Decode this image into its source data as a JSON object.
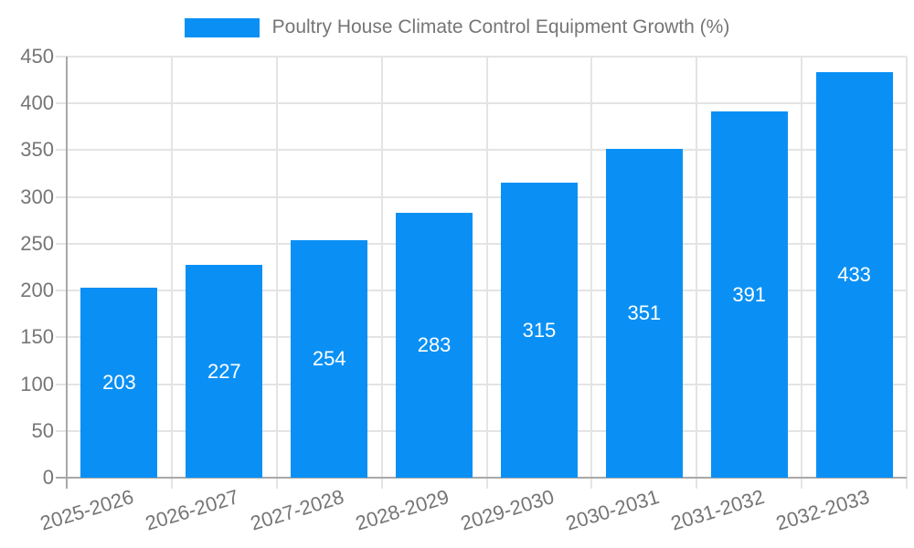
{
  "legend": {
    "label": "Poultry House Climate Control Equipment Growth (%)",
    "swatch_color": "#0A90F5"
  },
  "chart_data": {
    "type": "bar",
    "title": "Poultry House Climate Control Equipment Growth (%)",
    "categories": [
      "2025-2026",
      "2026-2027",
      "2027-2028",
      "2028-2029",
      "2029-2030",
      "2030-2031",
      "2031-2032",
      "2032-2033"
    ],
    "values": [
      203,
      227,
      254,
      283,
      315,
      351,
      391,
      433
    ],
    "xlabel": "",
    "ylabel": "",
    "ylim": [
      0,
      450
    ],
    "ytick_step": 50,
    "ytick_labels": [
      "0",
      "50",
      "100",
      "150",
      "200",
      "250",
      "300",
      "350",
      "400",
      "450"
    ],
    "grid": true,
    "legend_position": "top",
    "bar_color": "#0A90F5",
    "value_label_color": "#ffffff",
    "axis_label_color": "#757575",
    "grid_color": "#e4e4e4",
    "axis_line_color": "#a8a8a8",
    "background_color": "#ffffff"
  }
}
